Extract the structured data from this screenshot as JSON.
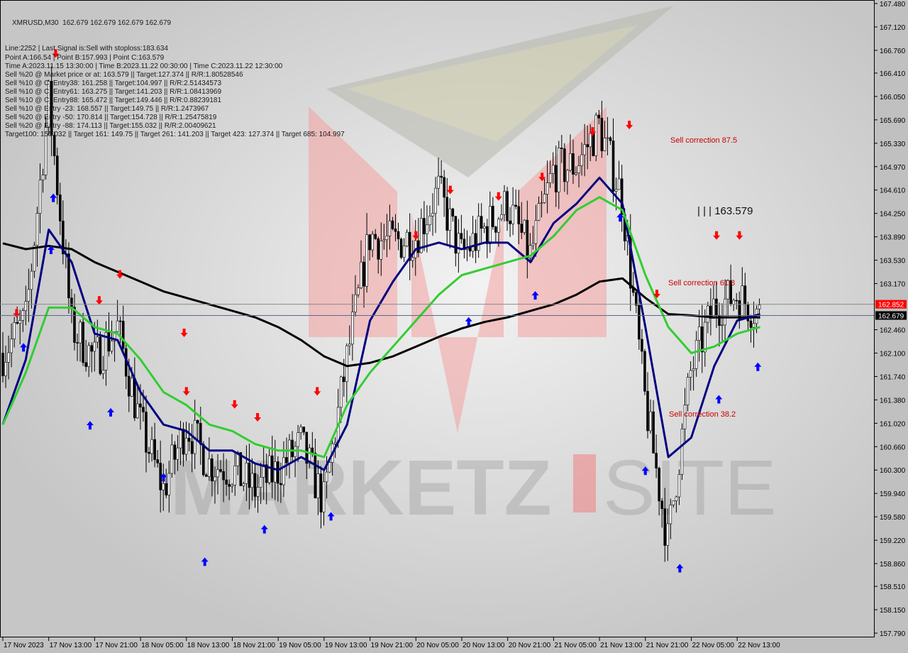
{
  "header": {
    "symbol": "XMRUSD,M30",
    "ohlc": "162.679 162.679 162.679 162.679"
  },
  "info_lines": [
    "Line:2252 | Last Signal is:Sell with stoploss:183.634",
    "Point A:166.54 | Point B:157.993 | Point C:163.579",
    "Time A:2023.11.15 13:30:00 | Time B:2023.11.22 00:30:00 | Time C:2023.11.22 12:30:00",
    "Sell %20 @ Market price or at: 163.579 || Target:127.374 || R/R:1.80528546",
    "Sell %10 @ C_Entry38: 161.258 || Target:104.997 || R/R:2.51434573",
    "Sell %10 @ C_Entry61: 163.275 || Target:141.203 || R/R:1.08413969",
    "Sell %10 @ C_Entry88: 165.472 || Target:149.446 || R/R:0.88239181",
    "Sell %10 @ Entry -23: 168.557 || Target:149.75 || R/R:1.2473967",
    "Sell %20 @ Entry -50: 170.814 || Target:154.728 || R/R:1.25475819",
    "Sell %20 @ Entry -88: 174.113 || Target:155.032 || R/R:2.00409621",
    "Target100: 155.032 || Target 161: 149.75 || Target 261: 141.203 || Target 423: 127.374 || Target 685: 104.997"
  ],
  "annotations": {
    "sell_87": "Sell correction 87.5",
    "sell_61": "Sell correction 61.8",
    "sell_38": "Sell correction 38.2",
    "point_c": "| | | 163.579"
  },
  "watermark": "MARKETZISITE",
  "colors": {
    "background": "#c0c0c0",
    "candle": "#000000",
    "ma_slow": "#000000",
    "ma_fast": "#000080",
    "ma_mid": "#32cd32",
    "sell_arrow": "#ff0000",
    "buy_arrow": "#0000ff",
    "annotation": "#cc0000",
    "ask_label": "#ff0000",
    "bid_label": "#000000"
  },
  "chart_data": {
    "type": "candlestick",
    "timeframe": "M30",
    "ylim": [
      157.79,
      167.48
    ],
    "y_ticks": [
      "167.480",
      "167.120",
      "166.760",
      "166.410",
      "166.050",
      "165.690",
      "165.330",
      "164.970",
      "164.610",
      "164.250",
      "163.890",
      "163.530",
      "163.170",
      "162.460",
      "162.100",
      "161.740",
      "161.380",
      "161.020",
      "160.660",
      "160.300",
      "159.940",
      "159.580",
      "159.220",
      "158.860",
      "158.510",
      "158.150",
      "157.790"
    ],
    "x_ticks": [
      "17 Nov 2023",
      "17 Nov 13:00",
      "17 Nov 21:00",
      "18 Nov 05:00",
      "18 Nov 13:00",
      "18 Nov 21:00",
      "19 Nov 05:00",
      "19 Nov 13:00",
      "19 Nov 21:00",
      "20 Nov 05:00",
      "20 Nov 13:00",
      "20 Nov 21:00",
      "21 Nov 05:00",
      "21 Nov 13:00",
      "21 Nov 21:00",
      "22 Nov 05:00",
      "22 Nov 13:00"
    ],
    "price_lines": [
      {
        "label": "162.852",
        "value": 162.852
      },
      {
        "label": "162.679",
        "value": 162.679
      }
    ],
    "close_every_4h": [
      162.1,
      162.6,
      166.0,
      162.5,
      162.0,
      162.5,
      161.0,
      160.0,
      161.0,
      160.4,
      160.3,
      160.0,
      160.3,
      160.7,
      159.8,
      162.0,
      163.9,
      163.8,
      163.9,
      164.6,
      163.6,
      164.0,
      164.4,
      163.6,
      164.9,
      165.0,
      165.6,
      164.5,
      161.4,
      159.2,
      161.8,
      162.8,
      163.0,
      162.7
    ],
    "series": [
      {
        "values": [
          163.79,
          163.7,
          163.75,
          163.7,
          163.5,
          163.35,
          163.2,
          163.05,
          162.95,
          162.85,
          162.75,
          162.65,
          162.5,
          162.3,
          162.05,
          161.9,
          161.95,
          162.05,
          162.2,
          162.35,
          162.48,
          162.58,
          162.65,
          162.75,
          162.85,
          163.0,
          163.2,
          163.25,
          162.95,
          162.7,
          162.68,
          162.65,
          162.65,
          162.65
        ]
      },
      {
        "values": [
          161.0,
          162.0,
          164.0,
          163.5,
          162.4,
          162.3,
          161.5,
          161.0,
          160.9,
          160.6,
          160.6,
          160.4,
          160.3,
          160.5,
          160.3,
          161.0,
          162.6,
          163.2,
          163.7,
          163.8,
          163.7,
          163.8,
          163.8,
          163.5,
          164.1,
          164.4,
          164.8,
          164.4,
          162.5,
          160.5,
          160.8,
          161.9,
          162.6,
          162.7
        ]
      },
      {
        "values": [
          161.0,
          161.8,
          162.8,
          162.8,
          162.5,
          162.4,
          162.0,
          161.5,
          161.3,
          161.0,
          160.9,
          160.7,
          160.6,
          160.6,
          160.5,
          161.3,
          161.8,
          162.2,
          162.6,
          163.0,
          163.3,
          163.4,
          163.5,
          163.6,
          163.9,
          164.3,
          164.5,
          164.3,
          163.3,
          162.5,
          162.1,
          162.2,
          162.4,
          162.5
        ]
      }
    ],
    "signals": [
      {
        "type": "sell",
        "at": 0.6,
        "price": 162.7
      },
      {
        "type": "buy",
        "at": 0.9,
        "price": 162.2
      },
      {
        "type": "sell",
        "at": 2.3,
        "price": 166.7
      },
      {
        "type": "buy",
        "at": 2.2,
        "price": 164.5
      },
      {
        "type": "buy",
        "at": 2.1,
        "price": 163.7
      },
      {
        "type": "sell",
        "at": 5.1,
        "price": 163.3
      },
      {
        "type": "sell",
        "at": 4.2,
        "price": 162.9
      },
      {
        "type": "buy",
        "at": 3.8,
        "price": 161.0
      },
      {
        "type": "buy",
        "at": 4.7,
        "price": 161.2
      },
      {
        "type": "sell",
        "at": 7.9,
        "price": 162.4
      },
      {
        "type": "sell",
        "at": 8.0,
        "price": 161.5
      },
      {
        "type": "buy",
        "at": 7.0,
        "price": 160.2
      },
      {
        "type": "buy",
        "at": 8.8,
        "price": 158.9
      },
      {
        "type": "sell",
        "at": 10.1,
        "price": 161.3
      },
      {
        "type": "sell",
        "at": 11.1,
        "price": 161.1
      },
      {
        "type": "buy",
        "at": 11.4,
        "price": 159.4
      },
      {
        "type": "sell",
        "at": 13.7,
        "price": 161.5
      },
      {
        "type": "buy",
        "at": 14.3,
        "price": 159.6
      },
      {
        "type": "sell",
        "at": 18.0,
        "price": 163.9
      },
      {
        "type": "sell",
        "at": 19.5,
        "price": 164.6
      },
      {
        "type": "buy",
        "at": 20.3,
        "price": 162.6
      },
      {
        "type": "sell",
        "at": 21.6,
        "price": 164.5
      },
      {
        "type": "sell",
        "at": 23.5,
        "price": 164.8
      },
      {
        "type": "buy",
        "at": 23.2,
        "price": 163.0
      },
      {
        "type": "sell",
        "at": 25.7,
        "price": 165.5
      },
      {
        "type": "sell",
        "at": 27.3,
        "price": 165.6
      },
      {
        "type": "buy",
        "at": 26.9,
        "price": 164.2
      },
      {
        "type": "sell",
        "at": 28.5,
        "price": 163.0
      },
      {
        "type": "buy",
        "at": 28.0,
        "price": 160.3
      },
      {
        "type": "buy",
        "at": 29.5,
        "price": 158.8
      },
      {
        "type": "buy",
        "at": 31.2,
        "price": 161.4
      },
      {
        "type": "sell",
        "at": 31.1,
        "price": 163.9
      },
      {
        "type": "sell",
        "at": 32.1,
        "price": 163.9
      },
      {
        "type": "buy",
        "at": 32.9,
        "price": 161.9
      }
    ]
  }
}
